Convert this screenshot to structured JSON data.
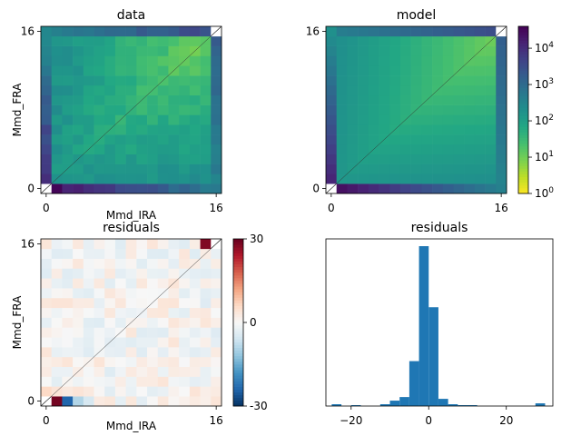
{
  "chart_data": [
    {
      "type": "heatmap",
      "title": "data",
      "xlabel": "Mmd_IRA",
      "ylabel": "Mmd_FRA",
      "x_ticks": [
        "0",
        "16"
      ],
      "y_ticks": [
        "0",
        "16"
      ],
      "grid_size": 17,
      "scale": "log",
      "colormap": "viridis_r",
      "diagonal_line": true
    },
    {
      "type": "heatmap",
      "title": "model",
      "x_ticks": [
        "0",
        "16"
      ],
      "y_ticks": [
        "0",
        "16"
      ],
      "grid_size": 17,
      "scale": "log",
      "colormap": "viridis_r",
      "diagonal_line": true,
      "colorbar": {
        "range": [
          1,
          40000
        ],
        "ticks": [
          "10^0",
          "10^1",
          "10^2",
          "10^3",
          "10^4"
        ]
      }
    },
    {
      "type": "heatmap",
      "title": "residuals",
      "xlabel": "Mmd_IRA",
      "ylabel": "Mmd_FRA",
      "x_ticks": [
        "0",
        "16"
      ],
      "y_ticks": [
        "0",
        "16"
      ],
      "grid_size": 17,
      "colormap": "RdBu_r",
      "diagonal_line": true,
      "colorbar": {
        "range": [
          -30,
          30
        ],
        "ticks": [
          "30",
          "0",
          "-30"
        ]
      }
    },
    {
      "type": "bar",
      "title": "residuals",
      "x_ticks": [
        "−20",
        "0",
        "20"
      ],
      "xlim": [
        -26.5,
        32
      ],
      "bins": [
        {
          "x0": -25,
          "x1": -22.5,
          "count": 1
        },
        {
          "x0": -20,
          "x1": -17.5,
          "count": 0.5
        },
        {
          "x0": -12.5,
          "x1": -10,
          "count": 1
        },
        {
          "x0": -10,
          "x1": -7.5,
          "count": 3
        },
        {
          "x0": -7.5,
          "x1": -5,
          "count": 5
        },
        {
          "x0": -5,
          "x1": -2.5,
          "count": 25
        },
        {
          "x0": -2.5,
          "x1": 0,
          "count": 89
        },
        {
          "x0": 0,
          "x1": 2.5,
          "count": 55
        },
        {
          "x0": 2.5,
          "x1": 5,
          "count": 4
        },
        {
          "x0": 5,
          "x1": 7.5,
          "count": 1
        },
        {
          "x0": 7.5,
          "x1": 10,
          "count": 0.5
        },
        {
          "x0": 10,
          "x1": 12.5,
          "count": 0.5
        },
        {
          "x0": 27.5,
          "x1": 30,
          "count": 1.5
        }
      ]
    }
  ]
}
